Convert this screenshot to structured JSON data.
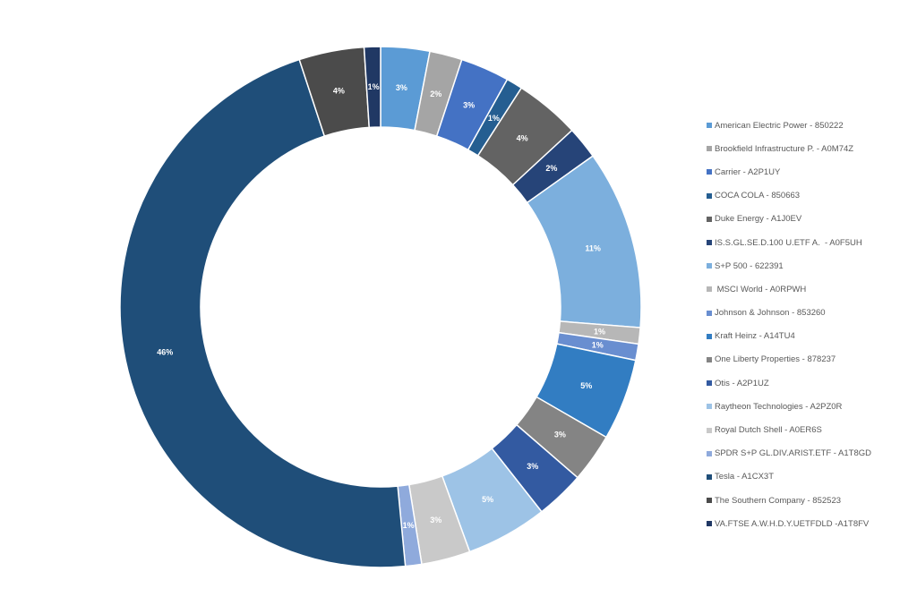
{
  "chart_data": {
    "type": "pie",
    "subtype": "donut",
    "title": "",
    "legend_position": "right",
    "series": [
      {
        "name": "American Electric Power - 850222",
        "value": 3,
        "label": "3%",
        "color": "#5B9BD5"
      },
      {
        "name": "Brookfield Infrastructure P. - A0M74Z",
        "value": 2,
        "label": "2%",
        "color": "#A5A5A5"
      },
      {
        "name": "Carrier - A2P1UY",
        "value": 3,
        "label": "3%",
        "color": "#4472C4"
      },
      {
        "name": "COCA COLA - 850663",
        "value": 1,
        "label": "1%",
        "color": "#255E91"
      },
      {
        "name": "Duke Energy - A1J0EV",
        "value": 4,
        "label": "4%",
        "color": "#636363"
      },
      {
        "name": "IS.S.GL.SE.D.100 U.ETF A.  - A0F5UH",
        "value": 2,
        "label": "2%",
        "color": "#264478"
      },
      {
        "name": "S+P 500 - 622391",
        "value": 11,
        "label": "11%",
        "color": "#7CAFDD"
      },
      {
        "name": " MSCI World - A0RPWH",
        "value": 1,
        "label": "1%",
        "color": "#B7B7B7"
      },
      {
        "name": "Johnson & Johnson - 853260",
        "value": 1,
        "label": "1%",
        "color": "#698ED0"
      },
      {
        "name": "Kraft Heinz - A14TU4",
        "value": 5,
        "label": "5%",
        "color": "#327DC2"
      },
      {
        "name": "One Liberty Properties - 878237",
        "value": 3,
        "label": "3%",
        "color": "#848484"
      },
      {
        "name": "Otis - A2P1UZ",
        "value": 3,
        "label": "3%",
        "color": "#335AA1"
      },
      {
        "name": "Raytheon Technologies - A2PZ0R",
        "value": 5,
        "label": "5%",
        "color": "#9DC3E6"
      },
      {
        "name": "Royal Dutch Shell - A0ER6S",
        "value": 3,
        "label": "3%",
        "color": "#C9C9C9"
      },
      {
        "name": "SPDR S+P GL.DIV.ARIST.ETF - A1T8GD",
        "value": 1,
        "label": "1%",
        "color": "#8FAADC"
      },
      {
        "name": "Tesla - A1CX3T",
        "value": 46,
        "label": "46%",
        "color": "#1F4E79"
      },
      {
        "name": "The Southern Company - 852523",
        "value": 4,
        "label": "4%",
        "color": "#4B4B4B"
      },
      {
        "name": "VA.FTSE A.W.H.D.Y.UETFDLD -A1T8FV",
        "value": 1,
        "label": "1%",
        "color": "#203864"
      }
    ]
  }
}
